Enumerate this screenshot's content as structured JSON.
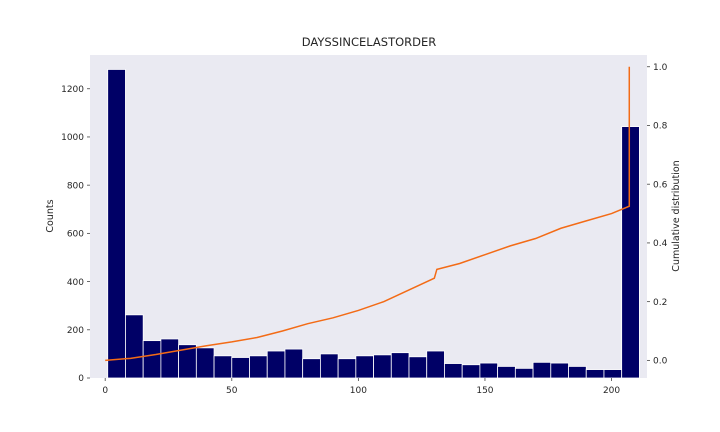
{
  "chart_data": {
    "type": "bar",
    "title": "DAYSSINCELASTORDER",
    "xlabel": "",
    "ylabel": "Counts",
    "ylabel_right": "Cumulative distribution",
    "xlim": [
      -6,
      214
    ],
    "ylim": [
      0,
      1340
    ],
    "ylim_right": [
      -0.06,
      1.04
    ],
    "x_ticks": [
      0,
      50,
      100,
      150,
      200
    ],
    "y_ticks": [
      0,
      200,
      400,
      600,
      800,
      1000,
      1200
    ],
    "y_ticks_right": [
      0.0,
      0.2,
      0.4,
      0.6,
      0.8,
      1.0
    ],
    "y_ticks_right_labels": [
      "0.0",
      "0.2",
      "0.4",
      "0.6",
      "0.8",
      "1.0"
    ],
    "grid": false,
    "colors": {
      "background": "#eaeaf2",
      "bar_fill": "#000066",
      "bar_edge": "#ffffff",
      "cdf_line": "#f36b16"
    },
    "bins": {
      "start": 1,
      "width": 7,
      "counts": [
        1280,
        262,
        155,
        162,
        138,
        125,
        92,
        85,
        92,
        112,
        120,
        80,
        100,
        80,
        92,
        96,
        105,
        88,
        112,
        60,
        55,
        62,
        48,
        40,
        65,
        62,
        48,
        35,
        35,
        1043
      ]
    },
    "series": [
      {
        "type": "line",
        "x": [
          0,
          10,
          20,
          30,
          40,
          50,
          60,
          70,
          80,
          90,
          100,
          110,
          120,
          130,
          131,
          140,
          150,
          160,
          170,
          180,
          190,
          200,
          207,
          207
        ],
        "y": [
          0.0,
          0.007,
          0.02,
          0.035,
          0.05,
          0.063,
          0.078,
          0.1,
          0.125,
          0.145,
          0.17,
          0.2,
          0.24,
          0.28,
          0.31,
          0.33,
          0.36,
          0.39,
          0.415,
          0.45,
          0.475,
          0.5,
          0.525,
          1.0
        ]
      }
    ]
  }
}
